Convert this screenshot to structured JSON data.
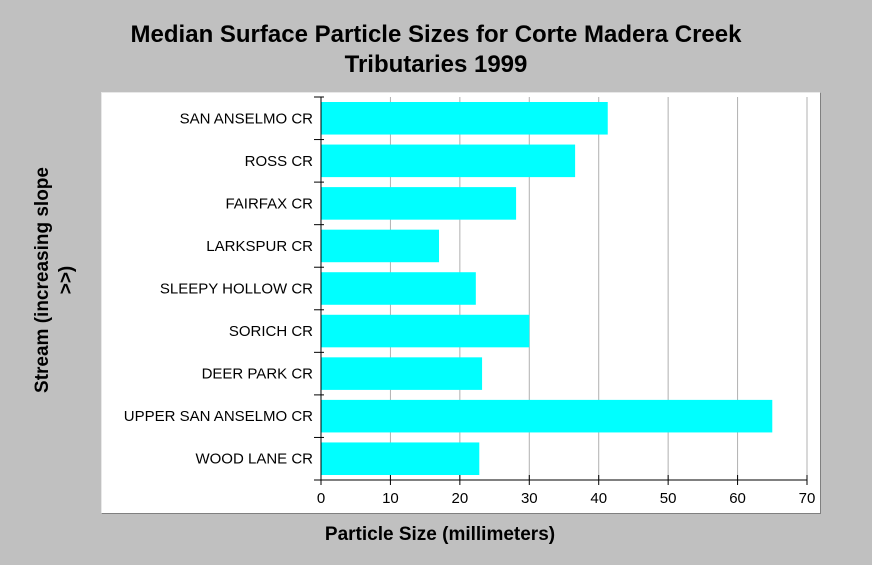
{
  "chart_data": {
    "type": "bar",
    "orientation": "horizontal",
    "title_line1": "Median Surface Particle Sizes for Corte Madera Creek",
    "title_line2": "Tributaries 1999",
    "xlabel": "Particle Size (millimeters)",
    "ylabel_line1": "Stream (increasing slope",
    "ylabel_line2": ">>)",
    "categories": [
      "SAN ANSELMO CR",
      "ROSS CR",
      "FAIRFAX CR",
      "LARKSPUR CR",
      "SLEEPY HOLLOW CR",
      "SORICH CR",
      "DEER PARK CR",
      "UPPER SAN ANSELMO CR",
      "WOOD LANE CR"
    ],
    "values": [
      41.3,
      36.6,
      28.1,
      17.0,
      22.3,
      30.0,
      23.2,
      65.0,
      22.8
    ],
    "xlim": [
      0,
      70
    ],
    "xticks": [
      "0",
      "10",
      "20",
      "30",
      "40",
      "50",
      "60",
      "70"
    ],
    "grid": "vertical",
    "bar_color": "#00ffff",
    "background_color": "#c0c0c0"
  }
}
